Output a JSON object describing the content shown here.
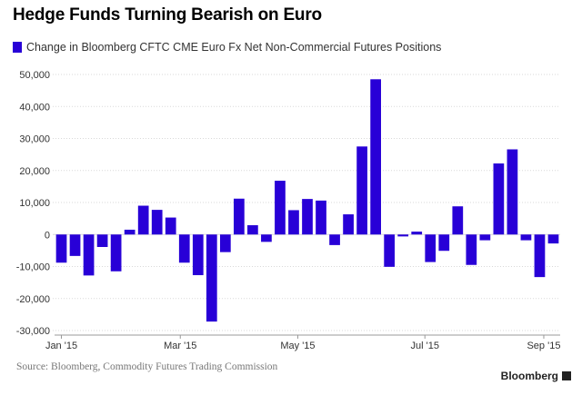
{
  "title": "Hedge Funds Turning Bearish on Euro",
  "source": "Source: Bloomberg, Commodity Futures Trading Commission",
  "brand": "Bloomberg",
  "colors": {
    "bar": "#2800d7",
    "grid": "#d9d9d9",
    "axis": "#999999"
  },
  "chart_data": {
    "type": "bar",
    "title": "Hedge Funds Turning Bearish on Euro",
    "xlabel": "",
    "ylabel": "",
    "ylim": [
      -30000,
      50000
    ],
    "yticks": [
      50000,
      40000,
      30000,
      20000,
      10000,
      0,
      -10000,
      -20000,
      -30000
    ],
    "ytick_labels": [
      "50,000",
      "40,000",
      "30,000",
      "20,000",
      "10,000",
      "0",
      "-10,000",
      "-20,000",
      "-30,000"
    ],
    "xtick_labels": [
      {
        "label": "Jan '15",
        "at": 0
      },
      {
        "label": "Mar '15",
        "at": 8.7
      },
      {
        "label": "May '15",
        "at": 17.3
      },
      {
        "label": "Jul '15",
        "at": 26.6
      },
      {
        "label": "Sep '15",
        "at": 35.3
      }
    ],
    "grid": true,
    "legend_position": "top-left",
    "series": [
      {
        "name": "Change in Bloomberg CFTC CME Euro Fx Net Non-Commercial Futures Positions",
        "values": [
          -8800,
          -6700,
          -12800,
          -3900,
          -11500,
          1500,
          9000,
          7700,
          5300,
          -8800,
          -12700,
          -27200,
          -5500,
          11200,
          2900,
          -2300,
          16800,
          7600,
          11100,
          10600,
          -3300,
          6300,
          27500,
          48500,
          -10100,
          -600,
          900,
          -8600,
          -5100,
          8800,
          -9500,
          -1800,
          22200,
          26600,
          -1800,
          -13300,
          -2800
        ]
      }
    ]
  }
}
